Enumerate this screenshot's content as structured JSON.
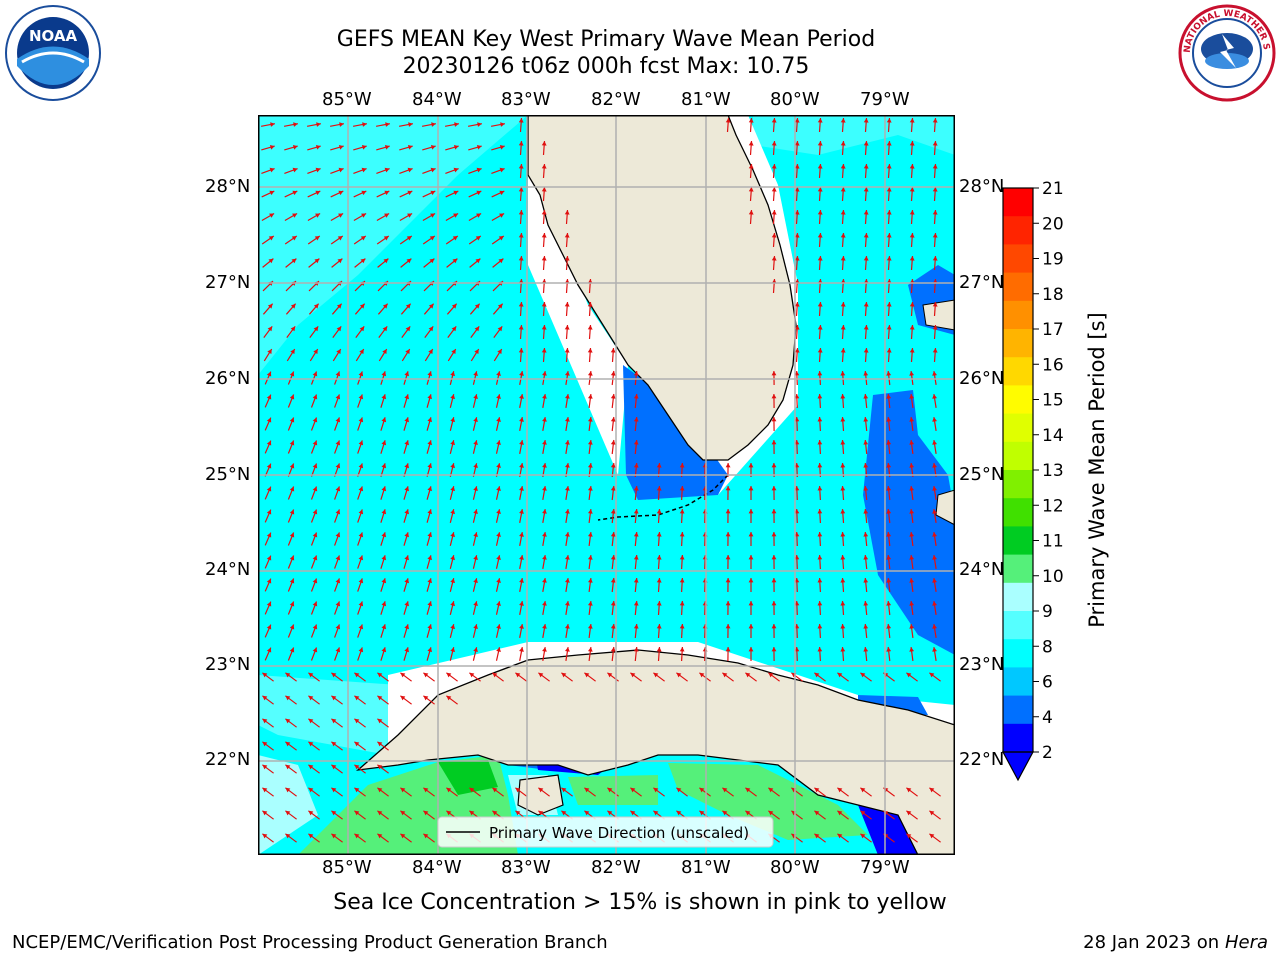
{
  "title_line1": "GEFS MEAN Key West Primary Wave Mean Period",
  "title_line2": "20230126 t06z 000h fcst   Max: 10.75",
  "logos": {
    "left": "NOAA",
    "right": "NATIONAL WEATHER SERVICE"
  },
  "lon_labels": [
    "85°W",
    "84°W",
    "83°W",
    "82°W",
    "81°W",
    "80°W",
    "79°W"
  ],
  "lat_labels": [
    "28°N",
    "27°N",
    "26°N",
    "25°N",
    "24°N",
    "23°N",
    "22°N"
  ],
  "legend_label": "Primary Wave Direction (unscaled)",
  "colorbar": {
    "label": "Primary Wave Mean Period [s]",
    "ticks": [
      "21",
      "20",
      "19",
      "18",
      "17",
      "16",
      "15",
      "14",
      "13",
      "12",
      "11",
      "10",
      "9",
      "8",
      "6",
      "4",
      "2"
    ],
    "colors": [
      "#ff0000",
      "#ff2400",
      "#ff4800",
      "#ff6c00",
      "#ff9000",
      "#ffb400",
      "#ffd800",
      "#fffc00",
      "#e0ff00",
      "#c0ff00",
      "#80f000",
      "#40e000",
      "#00cc22",
      "#55f07a",
      "#aaffff",
      "#55ffff",
      "#00ffff",
      "#00c8ff",
      "#0070ff",
      "#0000ff"
    ]
  },
  "caption": "Sea Ice Concentration > 15% is shown in pink to yellow",
  "footer_left": "NCEP/EMC/Verification Post Processing Product Generation Branch",
  "footer_right_date": "28 Jan 2023 on ",
  "footer_right_host": "Hera"
}
